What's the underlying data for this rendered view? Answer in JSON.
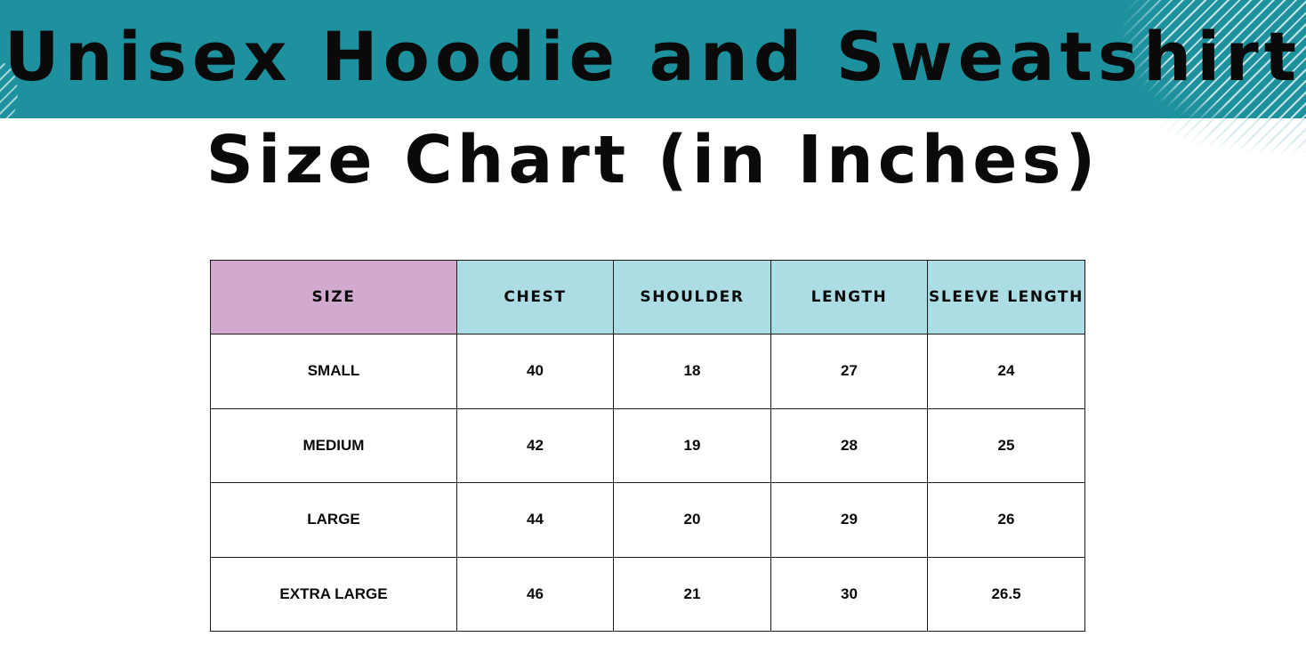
{
  "title": "Unisex Hoodie and Sweatshirt",
  "subtitle": "Size Chart (in Inches)",
  "colors": {
    "banner": "#1d929e",
    "size_header": "#d2a9cf",
    "measure_header": "#acdde4"
  },
  "table": {
    "headers": [
      "SIZE",
      "CHEST",
      "SHOULDER",
      "LENGTH",
      "SLEEVE LENGTH"
    ],
    "rows": [
      [
        "SMALL",
        "40",
        "18",
        "27",
        "24"
      ],
      [
        "MEDIUM",
        "42",
        "19",
        "28",
        "25"
      ],
      [
        "LARGE",
        "44",
        "20",
        "29",
        "26"
      ],
      [
        "EXTRA LARGE",
        "46",
        "21",
        "30",
        "26.5"
      ]
    ]
  }
}
